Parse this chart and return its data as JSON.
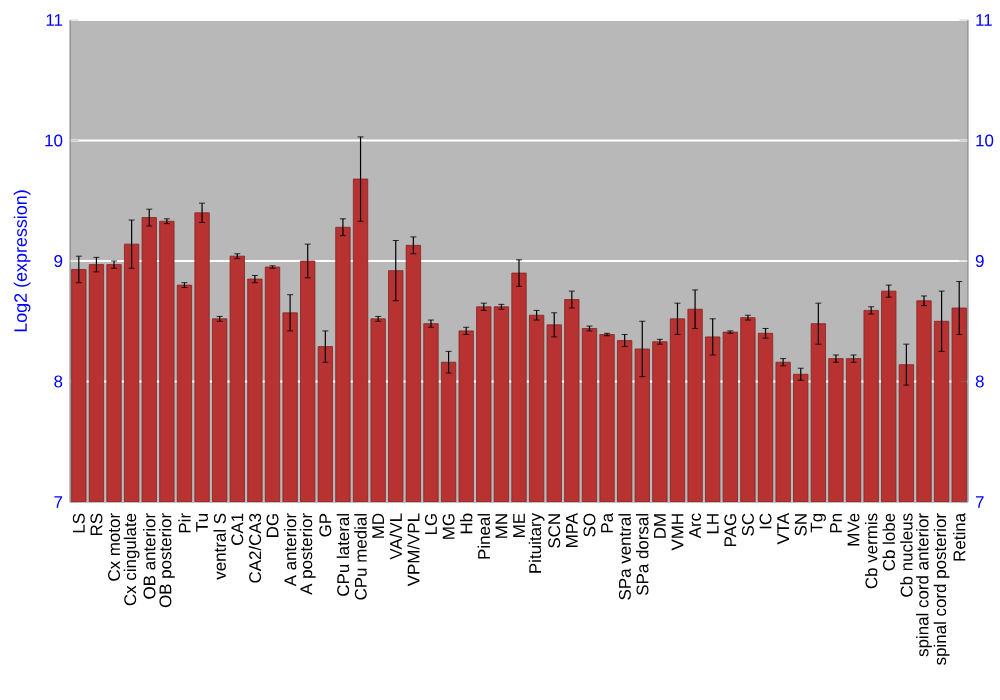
{
  "chart_data": {
    "type": "bar",
    "ylabel": "Log2 (expression)",
    "categories": [
      "LS",
      "RS",
      "Cx motor",
      "Cx cingulate",
      "OB anterior",
      "OB posterior",
      "Pir",
      "Tu",
      "ventral S",
      "CA1",
      "CA2/CA3",
      "DG",
      "A anterior",
      "A posterior",
      "GP",
      "CPu lateral",
      "CPu medial",
      "MD",
      "VA/VL",
      "VPM/VPL",
      "LG",
      "MG",
      "Hb",
      "Pineal",
      "MN",
      "ME",
      "Pituitary",
      "SCN",
      "MPA",
      "SO",
      "Pa",
      "SPa ventral",
      "SPa dorsal",
      "DM",
      "VMH",
      "Arc",
      "LH",
      "PAG",
      "SC",
      "IC",
      "VTA",
      "SN",
      "Tg",
      "Pn",
      "MVe",
      "Cb vermis",
      "Cb lobe",
      "Cb nucleus",
      "spinal cord anterior",
      "spinal cord posterior",
      "Retina"
    ],
    "values": [
      8.93,
      8.97,
      8.97,
      9.14,
      9.36,
      9.33,
      8.8,
      9.4,
      8.52,
      9.04,
      8.85,
      8.95,
      8.57,
      9.0,
      8.29,
      9.28,
      9.68,
      8.52,
      8.92,
      9.13,
      8.48,
      8.16,
      8.42,
      8.62,
      8.62,
      8.9,
      8.55,
      8.47,
      8.68,
      8.44,
      8.39,
      8.34,
      8.27,
      8.33,
      8.52,
      8.6,
      8.37,
      8.41,
      8.53,
      8.4,
      8.16,
      8.06,
      8.48,
      8.19,
      8.19,
      8.59,
      8.75,
      8.14,
      8.67,
      8.5,
      8.61
    ],
    "errors": [
      0.11,
      0.06,
      0.03,
      0.2,
      0.07,
      0.02,
      0.02,
      0.08,
      0.02,
      0.02,
      0.03,
      0.01,
      0.15,
      0.14,
      0.13,
      0.07,
      0.35,
      0.02,
      0.25,
      0.07,
      0.03,
      0.09,
      0.03,
      0.03,
      0.02,
      0.11,
      0.04,
      0.1,
      0.07,
      0.02,
      0.01,
      0.05,
      0.23,
      0.02,
      0.13,
      0.16,
      0.15,
      0.01,
      0.02,
      0.04,
      0.03,
      0.05,
      0.17,
      0.03,
      0.03,
      0.03,
      0.05,
      0.17,
      0.04,
      0.25,
      0.22
    ],
    "color": "#b83232",
    "ylim": [
      7,
      11
    ],
    "yticks": [
      7,
      8,
      9,
      10,
      11
    ],
    "y2lim": [
      7,
      11
    ],
    "y2ticks": [
      7,
      8,
      9,
      10,
      11
    ],
    "grid": "y"
  }
}
